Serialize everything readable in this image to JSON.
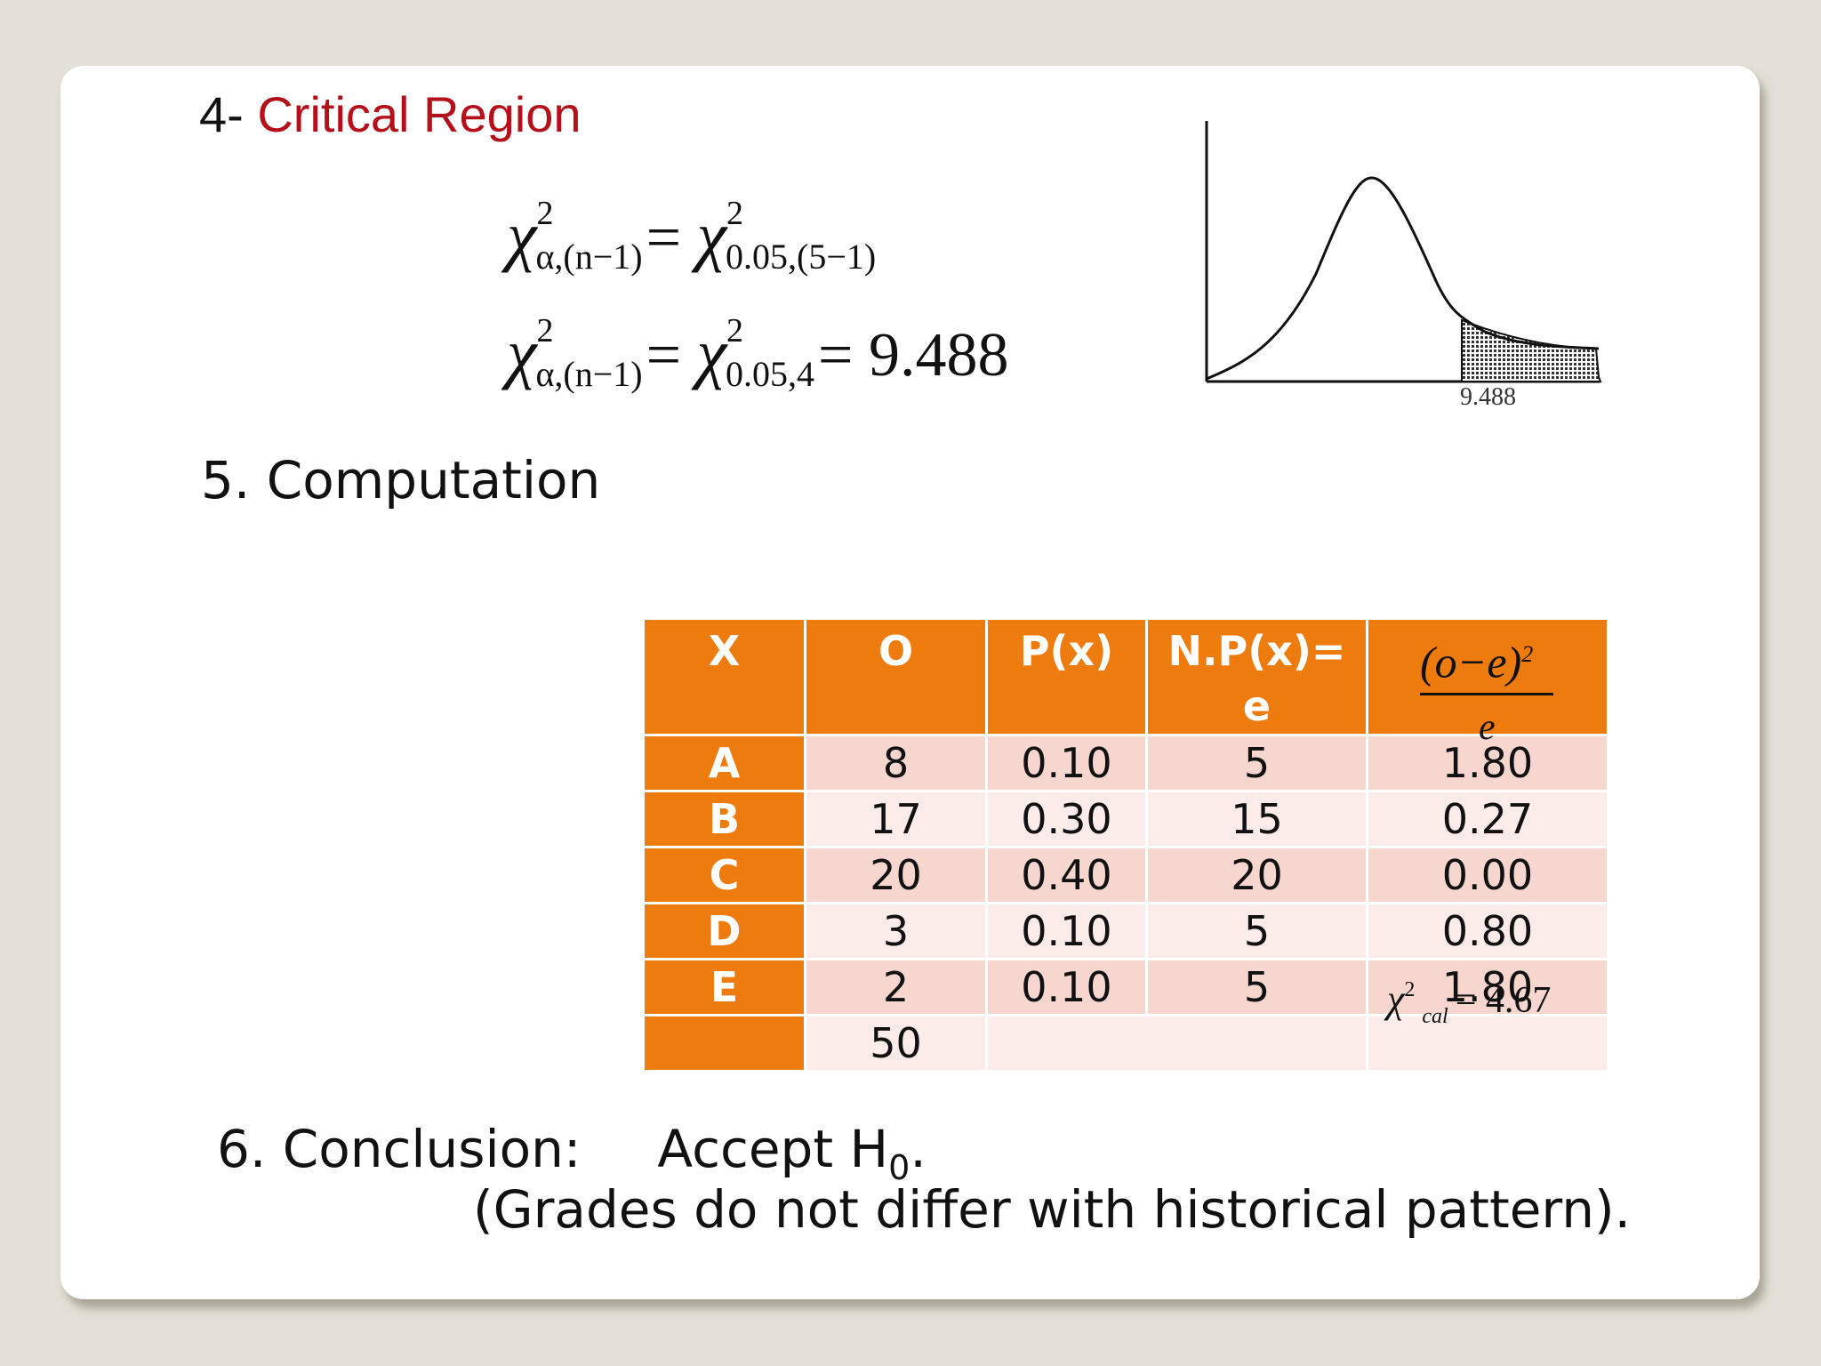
{
  "heading_critical": {
    "number": "4- ",
    "title": "Critical Region"
  },
  "formula1": {
    "lhs_sub": "α,(n−1)",
    "rhs_sub": "0.05,(5−1)",
    "sup": "2"
  },
  "formula2": {
    "lhs_sub": "α,(n−1)",
    "rhs_sub": "0.05,4",
    "sup": "2",
    "value": "9.488"
  },
  "graph": {
    "critical_label": "9.488"
  },
  "heading_computation": "5. Computation",
  "table": {
    "headers": [
      "X",
      "O",
      "P(x)",
      "N.P(x)=",
      "e"
    ],
    "fraction_header": {
      "numerator": "(o−e)",
      "exponent": "2",
      "denominator": "e"
    },
    "rows": [
      {
        "x": "A",
        "o": "8",
        "p": "0.10",
        "e": "5",
        "chi": "1.80"
      },
      {
        "x": "B",
        "o": "17",
        "p": "0.30",
        "e": "15",
        "chi": "0.27"
      },
      {
        "x": "C",
        "o": "20",
        "p": "0.40",
        "e": "20",
        "chi": "0.00"
      },
      {
        "x": "D",
        "o": "3",
        "p": "0.10",
        "e": "5",
        "chi": "0.80"
      },
      {
        "x": "E",
        "o": "2",
        "p": "0.10",
        "e": "5",
        "chi": "1.80"
      }
    ],
    "total": "50",
    "chi_cal": {
      "sup": "2",
      "sub": "cal",
      "value": "= 4.67"
    }
  },
  "conclusion": {
    "label": "6. Conclusion:",
    "accept": "Accept H",
    "subscript": "0",
    "period": ".",
    "reason": "(Grades do not differ with historical pattern)."
  }
}
